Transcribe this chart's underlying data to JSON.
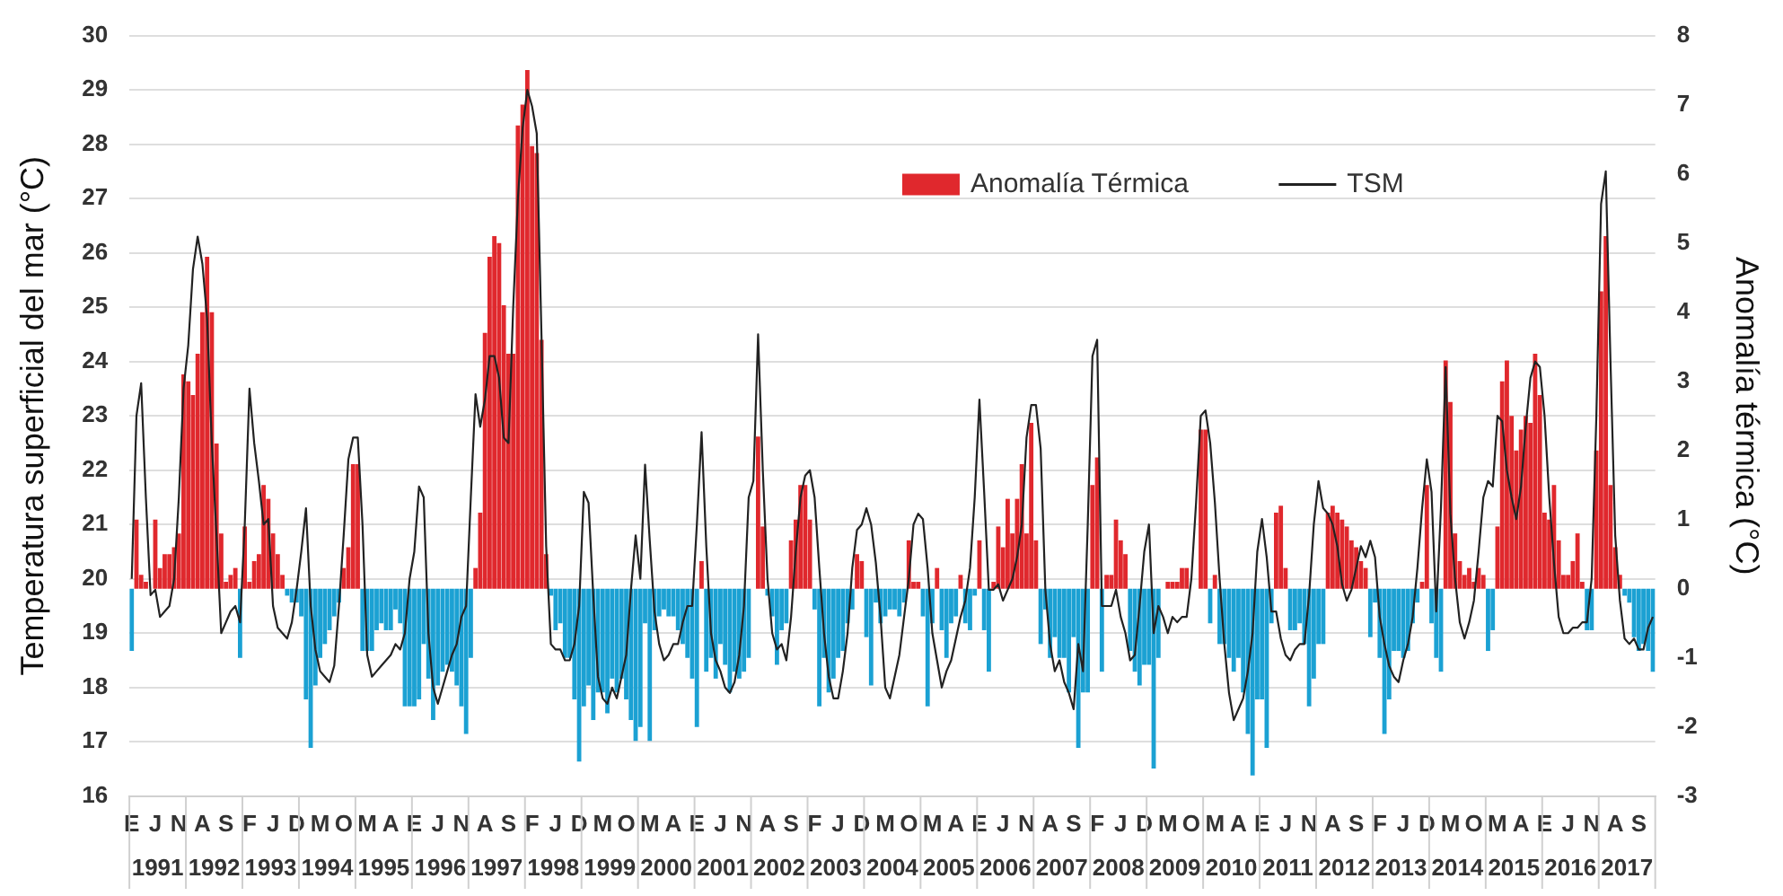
{
  "chart_data": {
    "type": "bar",
    "ylabel": "Temperatura superficial del mar (°C)",
    "y2label": "Anomalía térmica (°C)",
    "ylim": [
      16,
      30
    ],
    "yticks": [
      16,
      17,
      18,
      19,
      20,
      21,
      22,
      23,
      24,
      25,
      26,
      27,
      28,
      29,
      30
    ],
    "y2lim": [
      -3,
      8
    ],
    "y2ticks": [
      -3,
      -2,
      -1,
      0,
      1,
      2,
      3,
      4,
      5,
      6,
      7,
      8
    ],
    "grid": "y",
    "legend": "top right",
    "marker": "none",
    "line_style": "solid",
    "annotations": [
      "1991",
      "1992",
      "1993",
      "1994",
      "1995",
      "1996",
      "1997",
      "1998",
      "1999",
      "2000",
      "2001",
      "2002",
      "2003",
      "2004",
      "2005",
      "2006",
      "2007",
      "2008",
      "2009",
      "2010",
      "2011",
      "2012",
      "2013",
      "2014",
      "2015",
      "2016",
      "2017"
    ],
    "categories": [
      "E",
      null,
      null,
      null,
      null,
      "J",
      null,
      null,
      null,
      null,
      "N",
      null,
      null,
      null,
      null,
      "A",
      null,
      null,
      null,
      null,
      "S",
      null,
      null,
      null,
      null,
      "F",
      null,
      null,
      null,
      null,
      "J",
      null,
      null,
      null,
      null,
      "D",
      null,
      null,
      null,
      null,
      "M",
      null,
      null,
      null,
      null,
      "O",
      null,
      null,
      null,
      null,
      "M",
      null,
      null,
      null,
      null,
      "A",
      null,
      null,
      null,
      null,
      "E",
      null,
      null,
      null,
      null,
      "J",
      null,
      null,
      null,
      null,
      "N",
      null,
      null,
      null,
      null,
      "A",
      null,
      null,
      null,
      null,
      "S",
      null,
      null,
      null,
      null,
      "F",
      null,
      null,
      null,
      null,
      "J",
      null,
      null,
      null,
      null,
      "D",
      null,
      null,
      null,
      null,
      "M",
      null,
      null,
      null,
      null,
      "O",
      null,
      null,
      null,
      null,
      "M",
      null,
      null,
      null,
      null,
      "A",
      null,
      null,
      null,
      null,
      "E",
      null,
      null,
      null,
      null,
      "J",
      null,
      null,
      null,
      null,
      "N",
      null,
      null,
      null,
      null,
      "A",
      null,
      null,
      null,
      null,
      "S",
      null,
      null,
      null,
      null,
      "F",
      null,
      null,
      null,
      null,
      "J",
      null,
      null,
      null,
      null,
      "D",
      null,
      null,
      null,
      null,
      "M",
      null,
      null,
      null,
      null,
      "O",
      null,
      null,
      null,
      null,
      "M",
      null,
      null,
      null,
      null,
      "A",
      null,
      null,
      null,
      null,
      "E",
      null,
      null,
      null,
      null,
      "J",
      null,
      null,
      null,
      null,
      "N",
      null,
      null,
      null,
      null,
      "A",
      null,
      null,
      null,
      null,
      "S",
      null,
      null,
      null,
      null,
      "F",
      null,
      null,
      null,
      null,
      "J",
      null,
      null,
      null,
      null,
      "D",
      null,
      null,
      null,
      null,
      "M",
      null,
      null,
      null,
      null,
      "O",
      null,
      null,
      null,
      null,
      "M",
      null,
      null,
      null,
      null,
      "A",
      null,
      null,
      null,
      null,
      "E",
      null,
      null,
      null,
      null,
      "J",
      null,
      null,
      null,
      null,
      "N",
      null,
      null,
      null,
      null,
      "A",
      null,
      null,
      null,
      null,
      "S",
      null,
      null,
      null,
      null,
      "F",
      null,
      null,
      null,
      null,
      "J",
      null,
      null,
      null,
      null,
      "D",
      null,
      null,
      null,
      null,
      "M",
      null,
      null,
      null,
      null,
      "O",
      null,
      null,
      null,
      null,
      "M",
      null,
      null,
      null,
      null,
      "A",
      null,
      null,
      null,
      null,
      "E",
      null,
      null,
      null,
      null,
      "J",
      null,
      null,
      null,
      null,
      "N",
      null,
      null,
      null,
      null,
      "A",
      null,
      null,
      null,
      null,
      "S",
      null,
      null,
      null
    ],
    "series": [
      {
        "name": "Anomalía Térmica",
        "axis": "y2",
        "color": "#e0282d",
        "values": [
          -0.9,
          1.0,
          0.2,
          0.1,
          0.0,
          1.0,
          0.3,
          0.5,
          0.5,
          0.6,
          0.8,
          3.1,
          3.0,
          2.8,
          3.4,
          4.0,
          4.8,
          4.0,
          2.1,
          0.8,
          0.1,
          0.2,
          0.3,
          -1.0,
          0.9,
          0.1,
          0.4,
          0.5,
          1.5,
          1.3,
          0.8,
          0.5,
          0.2,
          -0.1,
          -0.2,
          -0.2,
          -0.4,
          -1.6,
          -2.3,
          -1.4,
          -1.0,
          -0.8,
          -0.6,
          -0.4,
          -0.2,
          0.3,
          0.6,
          1.8,
          1.8,
          -0.9,
          -0.9,
          -0.9,
          -0.6,
          -0.5,
          -0.6,
          -0.6,
          -0.3,
          -0.5,
          -1.7,
          -1.7,
          -1.7,
          -1.6,
          -0.8,
          -1.3,
          -1.9,
          -1.4,
          -1.2,
          -1.1,
          -1.2,
          -1.4,
          -1.7,
          -2.1,
          -1.0,
          0.3,
          1.1,
          3.7,
          4.8,
          5.1,
          5.0,
          4.1,
          3.4,
          3.4,
          6.7,
          7.0,
          7.5,
          6.4,
          6.3,
          3.6,
          0.5,
          -0.1,
          -0.6,
          -0.5,
          -1.0,
          -1.0,
          -1.6,
          -2.5,
          -1.7,
          -1.4,
          -1.9,
          -1.5,
          -1.5,
          -1.8,
          -1.3,
          -1.5,
          -1.3,
          -1.6,
          -1.9,
          -2.2,
          -2.0,
          -0.5,
          -2.2,
          -0.6,
          -0.4,
          -0.3,
          -0.4,
          -0.4,
          -0.6,
          -0.8,
          -1.0,
          -1.3,
          -2.0,
          0.4,
          -1.2,
          -1.0,
          -1.3,
          -0.8,
          -1.1,
          -1.5,
          -1.2,
          -1.3,
          -1.2,
          -1.0,
          0.0,
          2.2,
          0.9,
          -0.1,
          -0.4,
          -1.1,
          -0.6,
          -0.5,
          0.7,
          1.0,
          1.5,
          1.5,
          1.0,
          -0.3,
          -1.7,
          -1.0,
          -1.5,
          -1.3,
          -1.0,
          -0.9,
          -0.5,
          -0.3,
          0.5,
          0.4,
          -0.7,
          -1.4,
          -0.2,
          -0.5,
          -0.4,
          -0.3,
          -0.3,
          -0.4,
          -0.2,
          0.7,
          0.1,
          0.1,
          -0.4,
          -1.7,
          -0.5,
          0.3,
          -0.6,
          -1.0,
          -0.5,
          -0.4,
          0.2,
          -0.5,
          -0.6,
          -0.1,
          0.7,
          -0.6,
          -1.2,
          0.1,
          0.9,
          0.6,
          1.3,
          0.8,
          1.3,
          1.8,
          0.8,
          2.4,
          0.7,
          -0.8,
          -0.3,
          -1.0,
          -0.7,
          -1.0,
          -1.0,
          -1.5,
          -0.7,
          -2.3,
          -1.5,
          -1.5,
          1.5,
          1.9,
          -1.2,
          0.2,
          0.2,
          1.0,
          0.7,
          0.5,
          -0.9,
          -1.2,
          -1.4,
          -1.1,
          -1.1,
          -2.6,
          -1.0,
          0.0,
          0.1,
          0.1,
          0.1,
          0.3,
          0.3,
          0.0,
          0.0,
          2.3,
          2.3,
          -0.5,
          0.2,
          -0.8,
          -0.8,
          -1.0,
          -1.2,
          -1.0,
          -1.5,
          -2.1,
          -2.7,
          -1.6,
          -1.6,
          -2.3,
          -0.5,
          1.1,
          1.2,
          0.3,
          -0.6,
          -0.6,
          -0.5,
          -0.8,
          -1.7,
          -1.3,
          -0.8,
          -0.8,
          1.1,
          1.2,
          1.1,
          1.0,
          0.9,
          0.7,
          0.6,
          0.4,
          0.3,
          -0.7,
          -0.2,
          -1.0,
          -2.1,
          -1.6,
          -0.9,
          -0.9,
          -1.0,
          -0.9,
          -0.5,
          -0.2,
          0.1,
          1.5,
          -0.5,
          -1.0,
          -1.2,
          3.3,
          2.7,
          0.8,
          0.4,
          0.2,
          0.3,
          0.1,
          0.3,
          0.2,
          -0.9,
          -0.6,
          0.9,
          3.0,
          3.3,
          2.5,
          2.0,
          2.3,
          2.5,
          2.4,
          3.4,
          2.8,
          1.1,
          1.0,
          1.5,
          0.7,
          0.2,
          0.2,
          0.4,
          0.8,
          0.1,
          -0.6,
          -0.6,
          2.0,
          4.3,
          5.1,
          1.5,
          0.6,
          0.2,
          -0.1,
          -0.2,
          -0.7,
          -0.9,
          -0.8,
          -0.9,
          -1.2
        ],
        "colors": [
          "#1ba1d3",
          "#e0282d",
          "#e0282d",
          "#e0282d",
          "#e0282d",
          "#e0282d",
          "#e0282d",
          "#e0282d",
          "#e0282d",
          "#e0282d",
          "#e0282d",
          "#e0282d",
          "#e0282d",
          "#e0282d",
          "#e0282d",
          "#e0282d",
          "#e0282d",
          "#e0282d",
          "#e0282d",
          "#e0282d",
          "#e0282d",
          "#e0282d",
          "#e0282d",
          "#1ba1d3",
          "#e0282d",
          "#e0282d",
          "#e0282d",
          "#e0282d",
          "#e0282d",
          "#e0282d",
          "#e0282d",
          "#e0282d",
          "#e0282d",
          "#1ba1d3",
          "#1ba1d3",
          "#1ba1d3",
          "#1ba1d3",
          "#1ba1d3",
          "#1ba1d3",
          "#1ba1d3",
          "#1ba1d3",
          "#1ba1d3",
          "#1ba1d3",
          "#1ba1d3",
          "#1ba1d3",
          "#e0282d",
          "#e0282d",
          "#e0282d",
          "#e0282d",
          "#1ba1d3",
          "#1ba1d3",
          "#1ba1d3",
          "#1ba1d3",
          "#1ba1d3",
          "#1ba1d3",
          "#1ba1d3",
          "#1ba1d3",
          "#1ba1d3",
          "#1ba1d3",
          "#1ba1d3",
          "#1ba1d3",
          "#1ba1d3",
          "#1ba1d3",
          "#1ba1d3",
          "#1ba1d3",
          "#1ba1d3",
          "#1ba1d3",
          "#1ba1d3",
          "#1ba1d3",
          "#1ba1d3",
          "#1ba1d3",
          "#1ba1d3",
          "#1ba1d3",
          "#e0282d",
          "#e0282d",
          "#e0282d",
          "#e0282d",
          "#e0282d",
          "#e0282d",
          "#e0282d",
          "#e0282d",
          "#e0282d",
          "#e0282d",
          "#e0282d",
          "#e0282d",
          "#e0282d",
          "#e0282d",
          "#e0282d",
          "#e0282d",
          "#1ba1d3",
          "#1ba1d3",
          "#1ba1d3",
          "#1ba1d3",
          "#1ba1d3",
          "#1ba1d3",
          "#1ba1d3",
          "#1ba1d3",
          "#1ba1d3",
          "#1ba1d3",
          "#1ba1d3",
          "#1ba1d3",
          "#1ba1d3",
          "#1ba1d3",
          "#1ba1d3",
          "#1ba1d3",
          "#1ba1d3",
          "#1ba1d3",
          "#1ba1d3",
          "#1ba1d3",
          "#1ba1d3",
          "#1ba1d3",
          "#1ba1d3",
          "#1ba1d3",
          "#1ba1d3",
          "#1ba1d3",
          "#1ba1d3",
          "#1ba1d3",
          "#1ba1d3",
          "#1ba1d3",
          "#1ba1d3",
          "#1ba1d3",
          "#e0282d",
          "#1ba1d3",
          "#1ba1d3",
          "#1ba1d3",
          "#1ba1d3",
          "#1ba1d3",
          "#1ba1d3",
          "#1ba1d3",
          "#1ba1d3",
          "#1ba1d3",
          "#1ba1d3",
          "#e0282d",
          "#e0282d",
          "#e0282d",
          "#1ba1d3",
          "#1ba1d3",
          "#1ba1d3",
          "#1ba1d3",
          "#1ba1d3",
          "#e0282d",
          "#e0282d",
          "#e0282d",
          "#e0282d",
          "#e0282d",
          "#1ba1d3",
          "#1ba1d3",
          "#1ba1d3",
          "#1ba1d3",
          "#1ba1d3",
          "#1ba1d3",
          "#1ba1d3",
          "#1ba1d3",
          "#1ba1d3",
          "#e0282d",
          "#e0282d",
          "#1ba1d3",
          "#1ba1d3",
          "#1ba1d3",
          "#1ba1d3",
          "#1ba1d3",
          "#1ba1d3",
          "#1ba1d3",
          "#1ba1d3",
          "#1ba1d3",
          "#e0282d",
          "#e0282d",
          "#e0282d",
          "#1ba1d3",
          "#1ba1d3",
          "#1ba1d3",
          "#e0282d",
          "#1ba1d3",
          "#1ba1d3",
          "#1ba1d3",
          "#1ba1d3",
          "#e0282d",
          "#1ba1d3",
          "#1ba1d3",
          "#1ba1d3",
          "#e0282d",
          "#1ba1d3",
          "#1ba1d3",
          "#e0282d",
          "#e0282d",
          "#e0282d",
          "#e0282d",
          "#e0282d",
          "#e0282d",
          "#e0282d",
          "#e0282d",
          "#e0282d",
          "#e0282d",
          "#1ba1d3",
          "#1ba1d3",
          "#1ba1d3",
          "#1ba1d3",
          "#1ba1d3",
          "#1ba1d3",
          "#1ba1d3",
          "#1ba1d3",
          "#1ba1d3",
          "#1ba1d3",
          "#1ba1d3",
          "#e0282d",
          "#e0282d",
          "#1ba1d3",
          "#e0282d",
          "#e0282d",
          "#e0282d",
          "#e0282d",
          "#e0282d",
          "#1ba1d3",
          "#1ba1d3",
          "#1ba1d3",
          "#1ba1d3",
          "#1ba1d3",
          "#1ba1d3",
          "#1ba1d3",
          "#e0282d",
          "#e0282d",
          "#e0282d",
          "#e0282d",
          "#e0282d",
          "#e0282d",
          "#e0282d",
          "#e0282d",
          "#e0282d",
          "#e0282d",
          "#1ba1d3",
          "#e0282d",
          "#1ba1d3",
          "#1ba1d3",
          "#1ba1d3",
          "#1ba1d3",
          "#1ba1d3",
          "#1ba1d3",
          "#1ba1d3",
          "#1ba1d3",
          "#1ba1d3",
          "#1ba1d3",
          "#1ba1d3",
          "#1ba1d3",
          "#e0282d",
          "#e0282d",
          "#e0282d",
          "#1ba1d3",
          "#1ba1d3",
          "#1ba1d3",
          "#1ba1d3",
          "#1ba1d3",
          "#1ba1d3",
          "#1ba1d3",
          "#1ba1d3",
          "#e0282d",
          "#e0282d",
          "#e0282d",
          "#e0282d",
          "#e0282d",
          "#e0282d",
          "#e0282d",
          "#e0282d",
          "#e0282d",
          "#1ba1d3",
          "#1ba1d3",
          "#1ba1d3",
          "#1ba1d3",
          "#1ba1d3",
          "#1ba1d3",
          "#1ba1d3",
          "#1ba1d3",
          "#1ba1d3",
          "#1ba1d3",
          "#1ba1d3",
          "#e0282d",
          "#e0282d",
          "#1ba1d3",
          "#1ba1d3",
          "#1ba1d3",
          "#e0282d",
          "#e0282d",
          "#e0282d",
          "#e0282d",
          "#e0282d",
          "#e0282d",
          "#e0282d",
          "#e0282d",
          "#e0282d",
          "#1ba1d3",
          "#1ba1d3",
          "#e0282d",
          "#e0282d",
          "#e0282d",
          "#e0282d",
          "#e0282d",
          "#e0282d",
          "#e0282d",
          "#e0282d",
          "#e0282d",
          "#e0282d",
          "#e0282d",
          "#e0282d",
          "#e0282d",
          "#e0282d",
          "#e0282d",
          "#e0282d",
          "#e0282d",
          "#e0282d",
          "#e0282d",
          "#1ba1d3",
          "#1ba1d3",
          "#e0282d",
          "#e0282d",
          "#e0282d",
          "#e0282d",
          "#e0282d",
          "#e0282d",
          "#1ba1d3",
          "#1ba1d3",
          "#1ba1d3",
          "#1ba1d3",
          "#1ba1d3",
          "#1ba1d3",
          "#1ba1d3"
        ]
      },
      {
        "name": "TSM",
        "type": "line",
        "color": "#222222",
        "values": [
          20.0,
          23.0,
          23.6,
          21.5,
          19.7,
          19.8,
          19.3,
          19.4,
          19.5,
          20.0,
          21.5,
          23.5,
          24.3,
          25.7,
          26.3,
          25.8,
          24.8,
          22.5,
          20.8,
          19.0,
          19.2,
          19.4,
          19.5,
          19.2,
          21.0,
          23.5,
          22.5,
          21.8,
          21.0,
          21.1,
          19.5,
          19.1,
          19.0,
          18.9,
          19.2,
          19.8,
          20.5,
          21.3,
          19.5,
          18.7,
          18.3,
          18.2,
          18.1,
          18.4,
          19.5,
          20.8,
          22.2,
          22.6,
          22.6,
          21.0,
          18.6,
          18.2,
          18.3,
          18.4,
          18.5,
          18.6,
          18.8,
          18.7,
          19.0,
          20.0,
          20.5,
          21.7,
          21.5,
          19.0,
          18.0,
          17.7,
          18.0,
          18.3,
          18.6,
          18.8,
          19.3,
          19.5,
          21.5,
          23.4,
          22.8,
          23.3,
          24.1,
          24.1,
          23.7,
          22.6,
          22.5,
          25.0,
          27.0,
          28.3,
          29.0,
          28.7,
          28.2,
          24.5,
          20.6,
          18.8,
          18.7,
          18.7,
          18.5,
          18.5,
          18.8,
          19.5,
          21.6,
          21.4,
          19.7,
          18.2,
          17.8,
          17.7,
          18.0,
          17.8,
          18.2,
          18.6,
          19.8,
          20.8,
          20.0,
          22.1,
          20.7,
          19.4,
          18.8,
          18.5,
          18.6,
          18.8,
          18.8,
          19.2,
          19.5,
          19.5,
          21.0,
          22.7,
          20.6,
          19.0,
          18.5,
          18.3,
          18.0,
          17.9,
          18.1,
          18.6,
          19.5,
          21.5,
          21.8,
          24.5,
          22.0,
          20.0,
          19.0,
          18.7,
          18.8,
          18.5,
          19.3,
          20.5,
          21.5,
          21.9,
          22.0,
          21.5,
          20.2,
          19.0,
          18.2,
          17.8,
          17.8,
          18.3,
          19.0,
          20.2,
          20.9,
          21.0,
          21.3,
          21.0,
          20.3,
          19.3,
          18.0,
          17.8,
          18.2,
          18.6,
          19.3,
          20.0,
          21.0,
          21.2,
          21.1,
          20.2,
          19.0,
          18.5,
          18.0,
          18.3,
          18.5,
          18.9,
          19.3,
          19.6,
          20.2,
          21.5,
          23.3,
          21.6,
          19.8,
          19.8,
          19.9,
          19.6,
          19.8,
          20.0,
          20.4,
          21.0,
          22.6,
          23.2,
          23.2,
          22.4,
          19.8,
          18.8,
          18.3,
          18.5,
          18.1,
          17.9,
          17.6,
          18.8,
          18.3,
          21.0,
          24.1,
          24.4,
          19.5,
          19.5,
          19.5,
          19.8,
          19.3,
          19.0,
          18.5,
          18.6,
          19.5,
          20.5,
          21.0,
          19.0,
          19.5,
          19.3,
          19.0,
          19.3,
          19.2,
          19.3,
          19.3,
          20.0,
          21.4,
          23.0,
          23.1,
          22.5,
          21.4,
          20.0,
          18.8,
          17.9,
          17.4,
          17.6,
          17.8,
          18.3,
          19.0,
          20.5,
          21.1,
          20.4,
          19.4,
          19.4,
          18.9,
          18.6,
          18.5,
          18.7,
          18.8,
          18.8,
          19.7,
          21.0,
          21.8,
          21.3,
          21.2,
          21.0,
          20.6,
          19.9,
          19.6,
          19.8,
          20.2,
          20.6,
          20.4,
          20.7,
          20.4,
          19.3,
          18.8,
          18.4,
          18.2,
          18.1,
          18.5,
          18.8,
          19.3,
          20.2,
          21.3,
          22.2,
          21.6,
          19.4,
          21.3,
          23.9,
          21.2,
          20.0,
          19.2,
          18.9,
          19.2,
          19.6,
          20.5,
          21.5,
          21.8,
          21.7,
          23.0,
          22.9,
          22.0,
          21.5,
          21.1,
          21.7,
          22.8,
          23.7,
          24.0,
          23.9,
          23.0,
          21.5,
          20.3,
          19.3,
          19.0,
          19.0,
          19.1,
          19.1,
          19.2,
          19.2,
          20.0,
          23.0,
          26.9,
          27.5,
          24.0,
          20.8,
          19.6,
          18.9,
          18.8,
          18.9,
          18.7,
          18.7,
          19.1,
          19.3
        ]
      }
    ]
  }
}
